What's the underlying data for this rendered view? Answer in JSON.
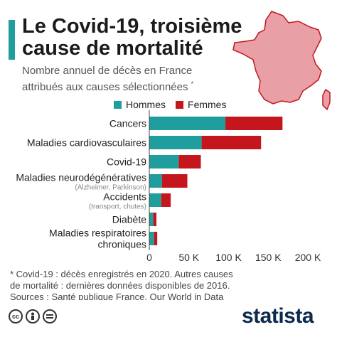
{
  "header": {
    "title": "Le Covid-19, troisième cause de mortalité",
    "subtitle": "Nombre annuel de décès en France attribués aux causes sélectionnées",
    "subtitle_mark": "*"
  },
  "footnote": {
    "line1": "* Covid-19 : décès enregistrés en 2020. Autres causes de mortalité : dernières données disponibles de 2016.",
    "line2": "Sources : Santé publique France, Our World in Data"
  },
  "brand": {
    "logo": "statista"
  },
  "colors": {
    "hommes": "#1f9e9d",
    "femmes": "#c4161c",
    "map_fill": "#e8a0a6",
    "map_stroke": "#c4161c",
    "accent": "#1f9e9d"
  },
  "icons": [
    "cc-icon",
    "person-icon",
    "equal-icon"
  ],
  "chart_data": {
    "type": "bar",
    "orientation": "horizontal",
    "stacked": true,
    "categories": [
      {
        "label": "Cancers",
        "sub": ""
      },
      {
        "label": "Maladies cardiovasculaires",
        "sub": ""
      },
      {
        "label": "Covid-19",
        "sub": ""
      },
      {
        "label": "Maladies neurodégénératives",
        "sub": "(Alzheimer, Parkinson)"
      },
      {
        "label": "Accidents",
        "sub": "(transport, chutes)"
      },
      {
        "label": "Diabète",
        "sub": ""
      },
      {
        "label": "Maladies respiratoires chroniques",
        "sub": ""
      }
    ],
    "series": [
      {
        "name": "Hommes",
        "values": [
          96000,
          66000,
          37000,
          16000,
          15000,
          5000,
          6000
        ]
      },
      {
        "name": "Femmes",
        "values": [
          72000,
          75000,
          28000,
          32000,
          12000,
          4000,
          4000
        ]
      }
    ],
    "xlim": [
      0,
      200000
    ],
    "xticks": [
      0,
      50000,
      100000,
      150000,
      200000
    ],
    "xtick_labels": [
      "0",
      "50 K",
      "100 K",
      "150 K",
      "200 K"
    ],
    "grid": false,
    "legend_position": "top"
  }
}
